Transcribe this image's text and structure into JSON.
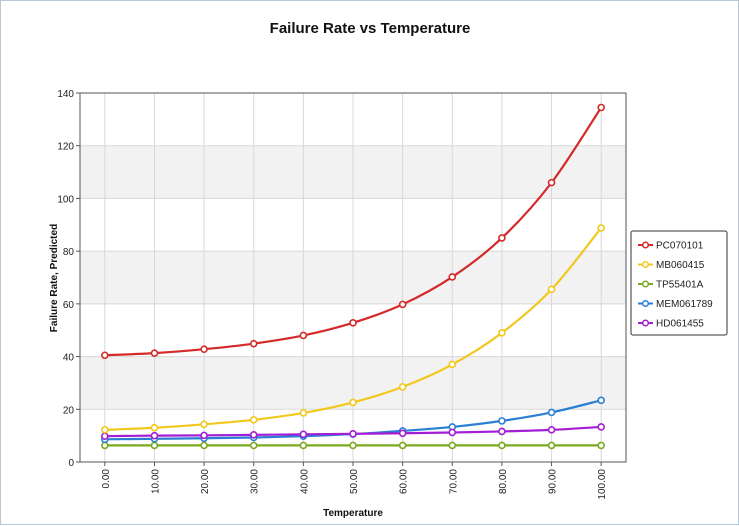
{
  "chart_data": {
    "type": "line",
    "title": "Failure Rate vs Temperature",
    "xlabel": "Temperature",
    "ylabel": "Failure Rate, Predicted",
    "x": [
      0,
      10,
      20,
      30,
      40,
      50,
      60,
      70,
      80,
      90,
      100
    ],
    "x_tick_labels": [
      "0.00",
      "10.00",
      "20.00",
      "30.00",
      "40.00",
      "50.00",
      "60.00",
      "70.00",
      "80.00",
      "90.00",
      "100.00"
    ],
    "xlim": [
      -5,
      105
    ],
    "ylim": [
      0,
      140
    ],
    "y_ticks": [
      0,
      20,
      40,
      60,
      80,
      100,
      120,
      140
    ],
    "grid": true,
    "legend_position": "right",
    "series": [
      {
        "name": "PC070101",
        "color": "#d42a2a",
        "values": [
          40.5,
          41.3,
          42.8,
          44.9,
          48.0,
          52.8,
          59.8,
          70.2,
          85.0,
          106.0,
          134.5
        ]
      },
      {
        "name": "MB060415",
        "color": "#f2c81e",
        "values": [
          12.2,
          13.0,
          14.3,
          16.0,
          18.6,
          22.6,
          28.5,
          37.0,
          49.0,
          65.5,
          88.8
        ]
      },
      {
        "name": "TP55401A",
        "color": "#7aaa1e",
        "values": [
          6.3,
          6.3,
          6.3,
          6.3,
          6.3,
          6.3,
          6.3,
          6.3,
          6.3,
          6.3,
          6.3
        ]
      },
      {
        "name": "MEM061789",
        "color": "#2a7fd4",
        "values": [
          8.6,
          8.8,
          9.0,
          9.3,
          9.8,
          10.6,
          11.8,
          13.3,
          15.6,
          18.8,
          23.4
        ]
      },
      {
        "name": "HD061455",
        "color": "#a31ed4",
        "values": [
          9.8,
          10.0,
          10.1,
          10.3,
          10.5,
          10.7,
          10.9,
          11.2,
          11.6,
          12.2,
          13.3
        ]
      }
    ]
  }
}
